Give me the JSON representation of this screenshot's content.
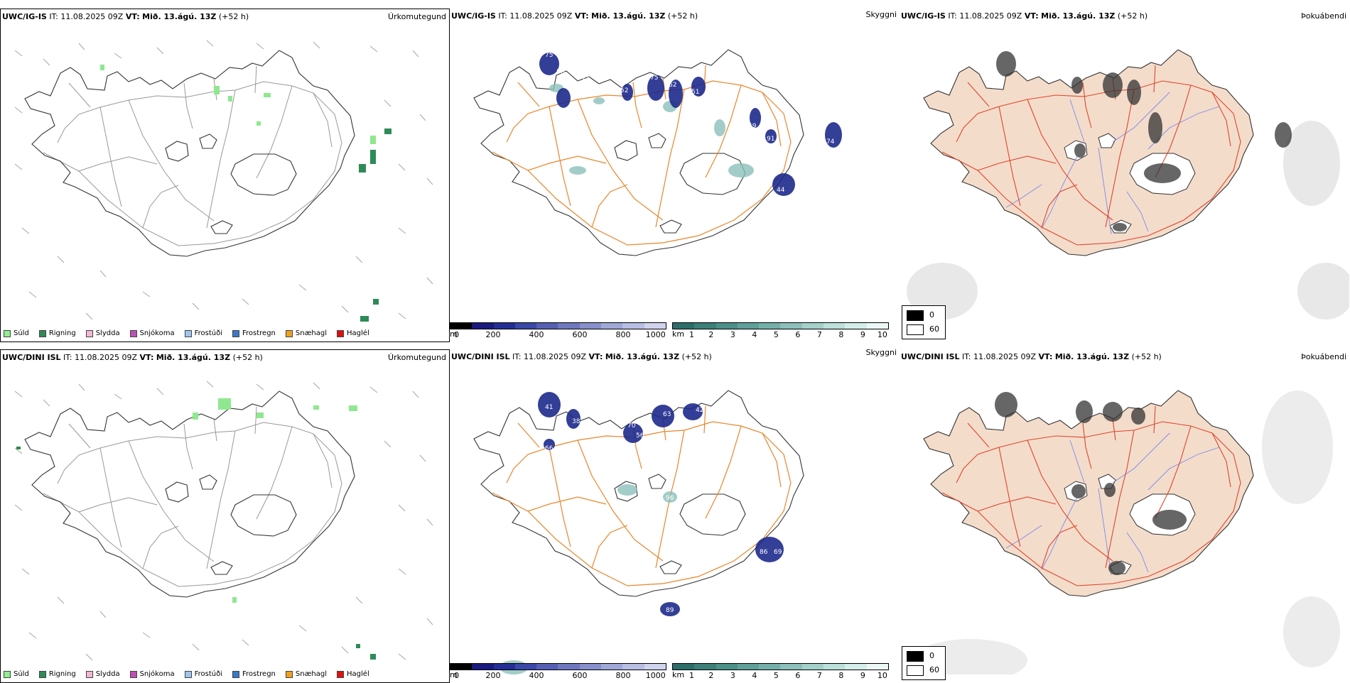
{
  "rows": [
    {
      "id": "top",
      "precip": {
        "model": "UWC/IG-IS",
        "it_label": "IT:",
        "it": "11.08.2025 09Z",
        "vt_label": "VT:",
        "vt": "Mið. 13.ágú. 13Z",
        "lead": "(+52 h)",
        "right_label": "Úrkomutegund"
      },
      "cloud": {
        "model": "UWC/IG-IS",
        "it_label": "IT:",
        "it": "11.08.2025 09Z",
        "vt_label": "VT:",
        "vt": "Mið. 13.ágú. 13Z",
        "lead": "(+52 h)",
        "right_label": "Skyggni"
      },
      "fog": {
        "model": "UWC/IG-IS",
        "it_label": "IT:",
        "it": "11.08.2025 09Z",
        "vt_label": "VT:",
        "vt": "Mið. 13.ágú. 13Z",
        "lead": "(+52 h)",
        "right_label": "Þokuábendi"
      },
      "cloud_numbers": [
        "75",
        "56",
        "71",
        "75",
        "62",
        "51",
        "52",
        "52",
        "49",
        "91",
        "74",
        "54",
        "17",
        "44",
        "38"
      ]
    },
    {
      "id": "bottom",
      "precip": {
        "model": "UWC/DINI ISL",
        "it_label": "IT:",
        "it": "11.08.2025 09Z",
        "vt_label": "VT:",
        "vt": "Mið. 13.ágú. 13Z",
        "lead": "(+52 h)",
        "right_label": "Úrkomutegund"
      },
      "cloud": {
        "model": "UWC/DINI ISL",
        "it_label": "IT:",
        "it": "11.08.2025 09Z",
        "vt_label": "VT:",
        "vt": "Mið. 13.ágú. 13Z",
        "lead": "(+52 h)",
        "right_label": "Skyggni"
      },
      "fog": {
        "model": "UWC/DINI ISL",
        "it_label": "IT:",
        "it": "11.08.2025 09Z",
        "vt_label": "VT:",
        "vt": "Mið. 13.ágú. 13Z",
        "lead": "(+52 h)",
        "right_label": "Þokuábendi"
      },
      "cloud_numbers": [
        "41",
        "38",
        "70",
        "56",
        "63",
        "42",
        "53",
        "66",
        "96",
        "86",
        "69",
        "89"
      ]
    }
  ],
  "precip_legend": [
    {
      "label": "Súld",
      "color": "#90ee90"
    },
    {
      "label": "Rigning",
      "color": "#2e8b57"
    },
    {
      "label": "Slydda",
      "color": "#f4b6d2"
    },
    {
      "label": "Snjókoma",
      "color": "#c050b0"
    },
    {
      "label": "Frostúði",
      "color": "#9ec6f0"
    },
    {
      "label": "Frostregn",
      "color": "#3a78c8"
    },
    {
      "label": "Snæhagl",
      "color": "#f0a020"
    },
    {
      "label": "Haglél",
      "color": "#e01010"
    }
  ],
  "cloud_base_bar": {
    "unit": "m",
    "ticks": [
      "0",
      "200",
      "400",
      "600",
      "800",
      "1000"
    ],
    "colors": [
      "#000000",
      "#1a1a80",
      "#232f96",
      "#3a48a8",
      "#5560b4",
      "#6e78c0",
      "#8890cc",
      "#a0a8d8",
      "#b8bee4",
      "#d0d4ee"
    ]
  },
  "visibility_bar": {
    "unit": "km",
    "ticks": [
      "1",
      "2",
      "3",
      "4",
      "5",
      "6",
      "7",
      "8",
      "9",
      "10"
    ],
    "colors": [
      "#2e6e6a",
      "#3c807a",
      "#4c908a",
      "#5fa09a",
      "#74b0aa",
      "#8cc0ba",
      "#a4d0ca",
      "#bce0da",
      "#d4eeea",
      "#ecf8f6"
    ]
  },
  "fog_legend": [
    {
      "label": "0",
      "color": "#000000"
    },
    {
      "label": "60",
      "color": "#ffffff"
    }
  ],
  "colors": {
    "land_fog": "#f4dccb",
    "roads": "#e8862a",
    "roads_fog": "#e0452a",
    "rivers": "#7a8ce8"
  }
}
